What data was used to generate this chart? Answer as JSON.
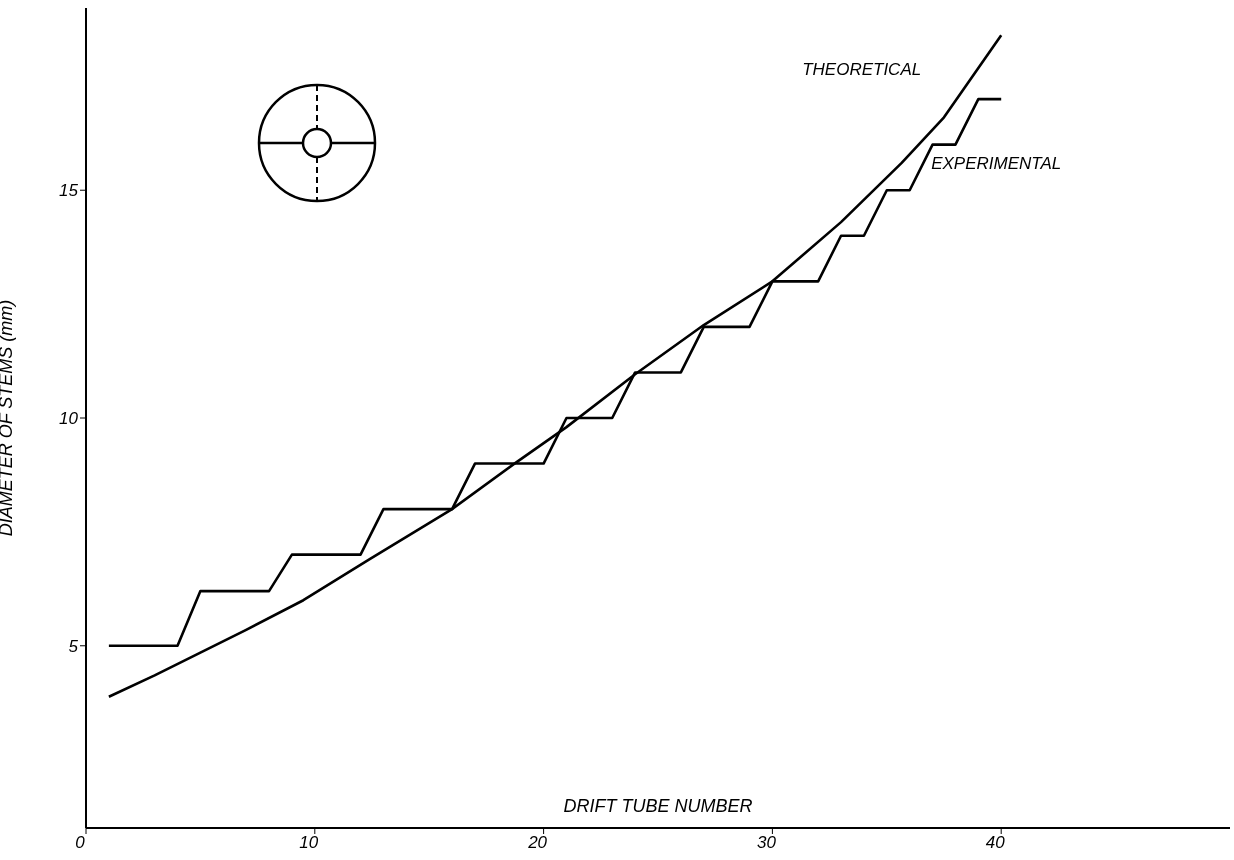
{
  "chart_data": {
    "type": "line",
    "xlabel": "DRIFT TUBE NUMBER",
    "ylabel": "DIAMETER OF STEMS (mm)",
    "xlim": [
      0,
      50
    ],
    "xticks": [
      0,
      10,
      20,
      30,
      40
    ],
    "ylim": [
      1,
      19
    ],
    "yticks": [
      5,
      10,
      15
    ],
    "marker": "none",
    "line_style": "solid",
    "series": [
      {
        "name": "THEORETICAL",
        "color": "#000000",
        "x": [
          1,
          3,
          5,
          7,
          9.5,
          12.4,
          16,
          18.65,
          21,
          24,
          27,
          30,
          33,
          35.65,
          37.5,
          40
        ],
        "values": [
          3.88,
          4.35,
          4.85,
          5.35,
          6.0,
          6.9,
          8.0,
          8.97,
          9.8,
          10.96,
          12.04,
          13.0,
          14.3,
          15.6,
          16.6,
          18.4
        ]
      },
      {
        "name": "EXPERIMENTAL",
        "color": "#000000",
        "x": [
          1,
          4,
          5,
          8,
          9,
          12,
          13,
          16,
          17,
          20,
          21,
          23,
          24,
          26,
          27,
          29,
          30,
          32,
          33,
          34,
          35,
          36,
          37,
          38,
          39,
          40
        ],
        "values": [
          5,
          5,
          6.2,
          6.2,
          7,
          7,
          8,
          8,
          9,
          9,
          10,
          10,
          11,
          11,
          12,
          12,
          13,
          13,
          14,
          14,
          15,
          15,
          16,
          16,
          17,
          17
        ]
      }
    ]
  }
}
